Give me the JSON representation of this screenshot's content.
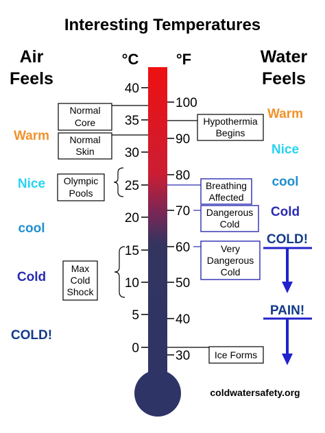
{
  "title": "Interesting Temperatures",
  "air_header": [
    "Air",
    "Feels"
  ],
  "water_header": [
    "Water",
    "Feels"
  ],
  "celsius_unit": "°C",
  "fahrenheit_unit": "°F",
  "celsius_ticks": [
    "40",
    "35",
    "30",
    "25",
    "20",
    "15",
    "10",
    "5",
    "0"
  ],
  "fahrenheit_ticks": [
    "100",
    "90",
    "80",
    "70",
    "60",
    "50",
    "40",
    "30"
  ],
  "air_feels": [
    "Warm",
    "Nice",
    "cool",
    "Cold",
    "COLD!"
  ],
  "water_feels": [
    "Warm",
    "Nice",
    "cool",
    "Cold",
    "COLD!",
    "PAIN!"
  ],
  "left_callouts": {
    "normal_core": [
      "Normal",
      "Core"
    ],
    "normal_skin": [
      "Normal",
      "Skin"
    ],
    "olympic_pools": [
      "Olympic",
      "Pools"
    ],
    "max_cold_shock": [
      "Max",
      "Cold",
      "Shock"
    ]
  },
  "right_callouts": {
    "hypothermia": [
      "Hypothermia",
      "Begins"
    ],
    "breathing": [
      "Breathing",
      "Affected"
    ],
    "dangerous_cold": [
      "Dangerous",
      "Cold"
    ],
    "very_dangerous": [
      "Very",
      "Dangerous",
      "Cold"
    ],
    "ice_forms": [
      "Ice Forms"
    ]
  },
  "credit": "coldwatersafety.org",
  "colors": {
    "thermo_hot": "#ee1111",
    "thermo_cold": "#2e3466",
    "warm": "#f0922a",
    "nice": "#27d3f2",
    "cool": "#1f8fd0",
    "cold": "#2a2bb0",
    "cold_bang": "#123a8a",
    "arrow": "#2222cc"
  }
}
